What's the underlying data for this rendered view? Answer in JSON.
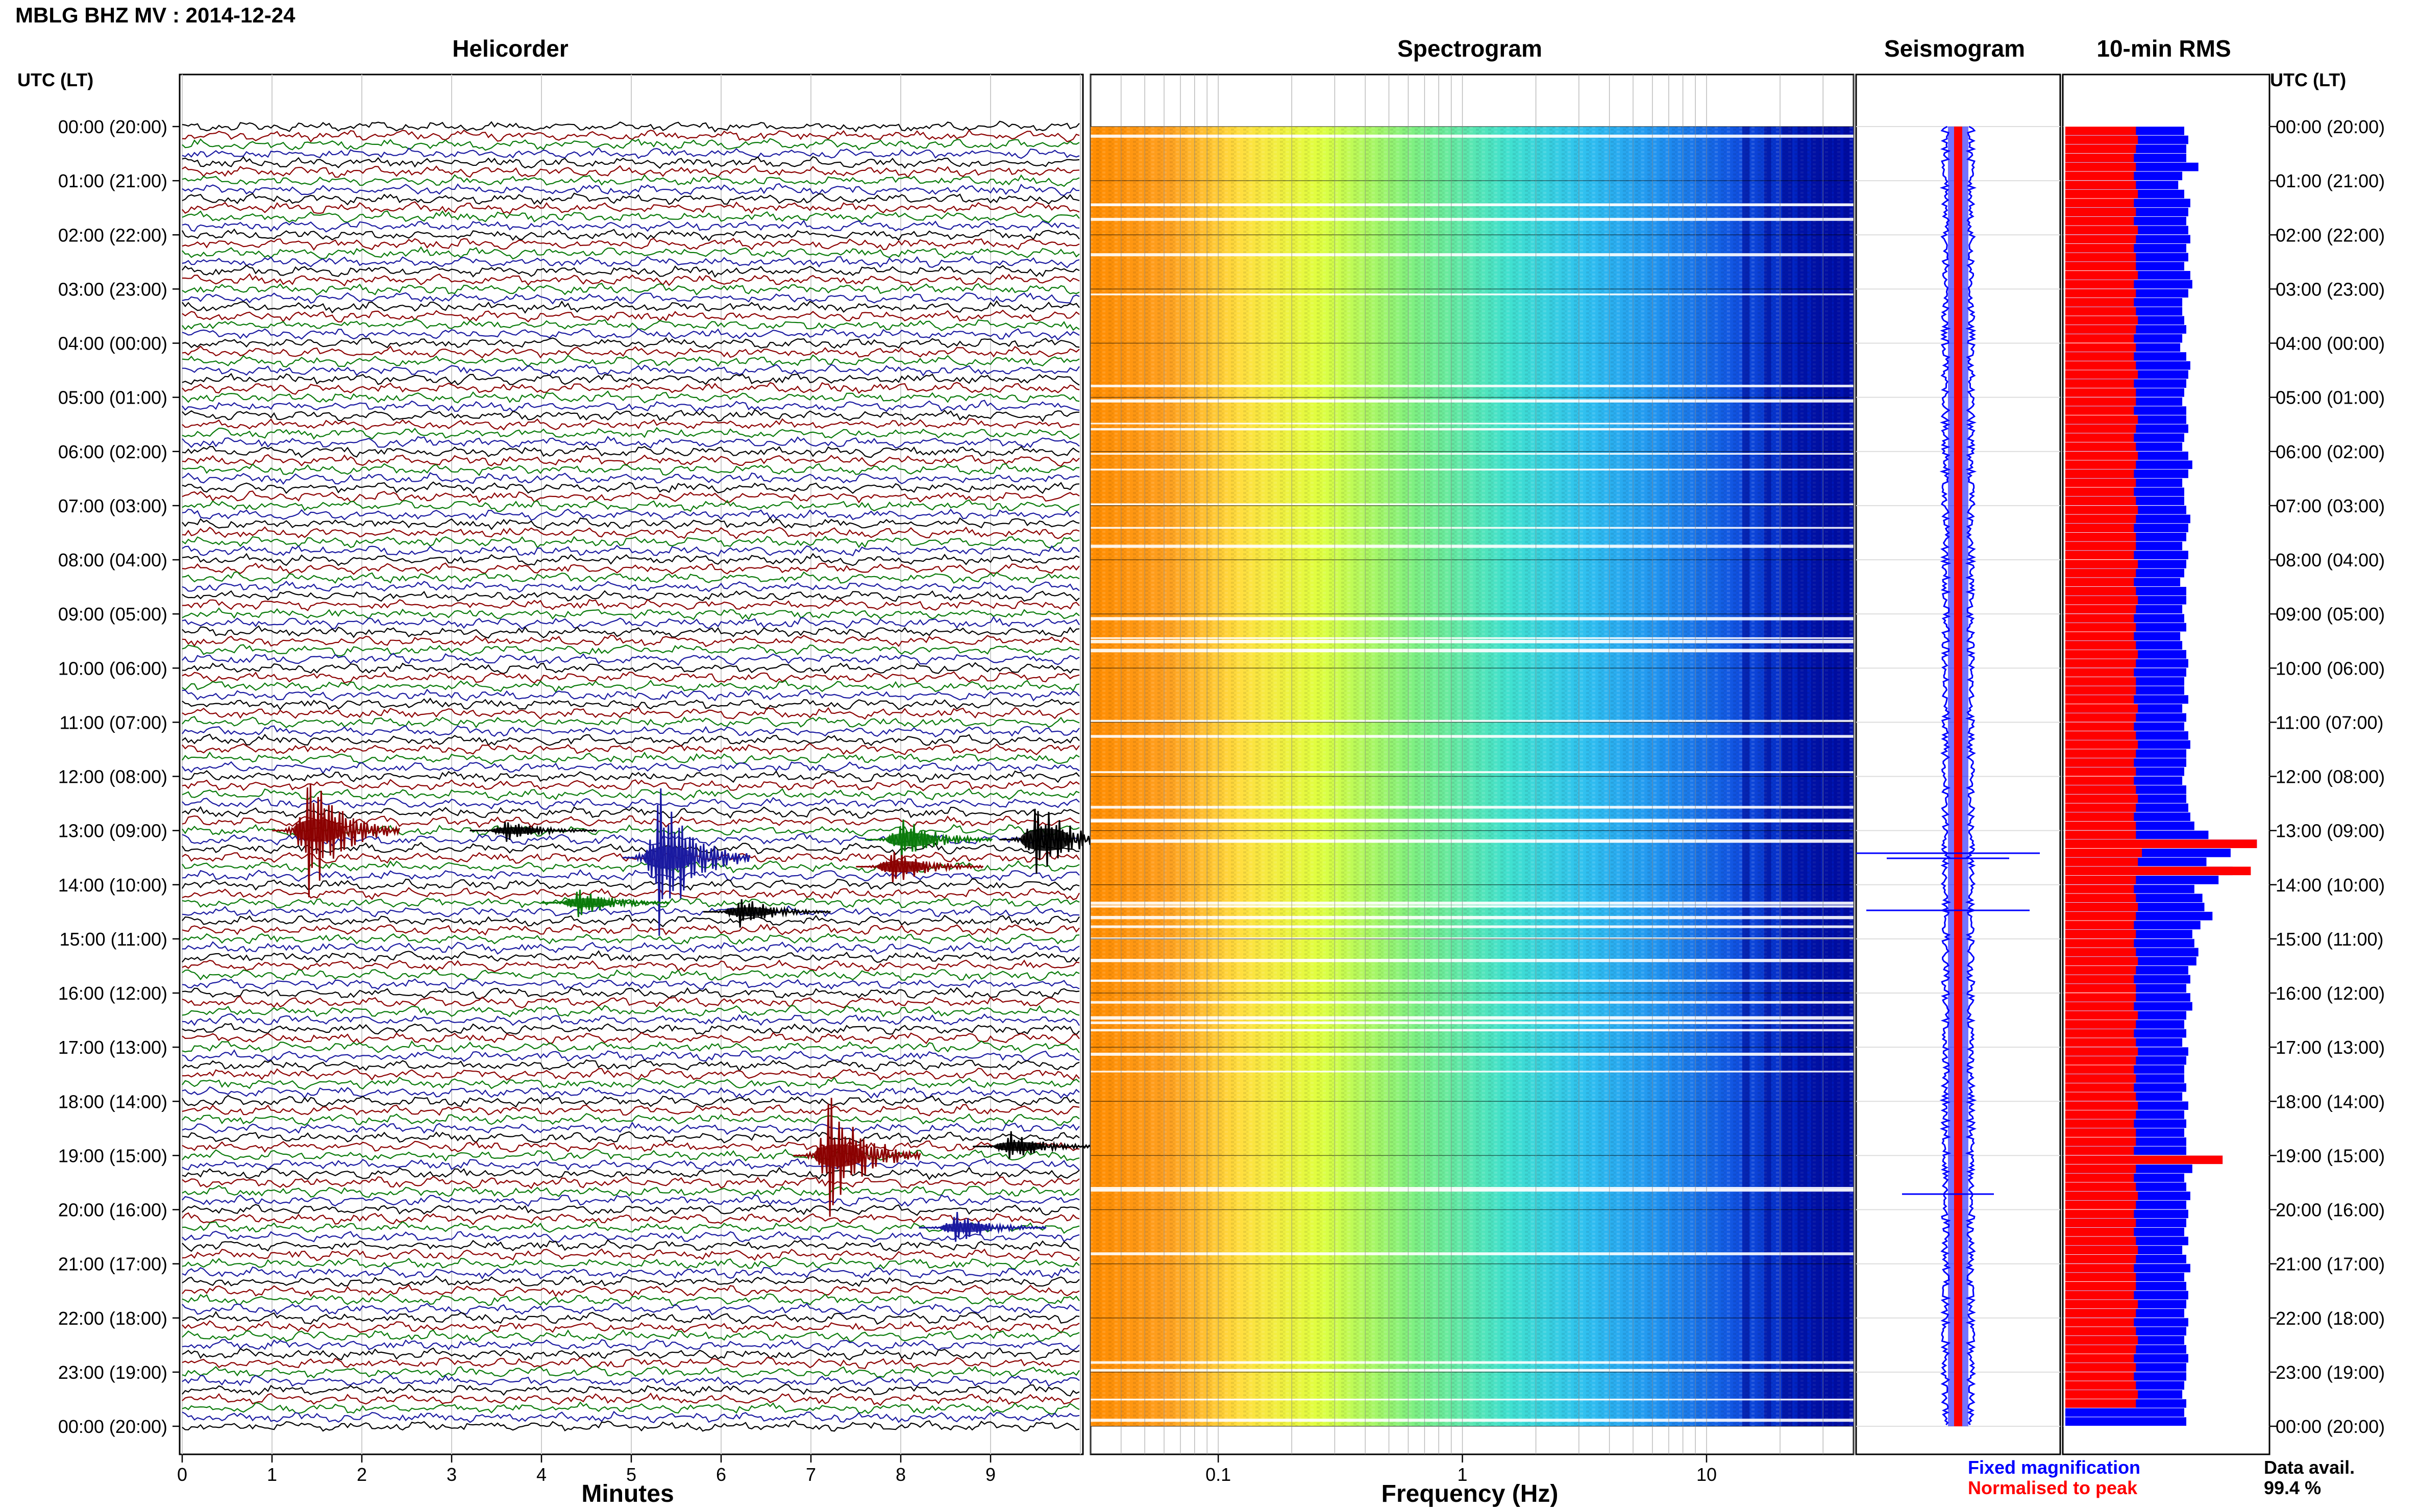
{
  "header": {
    "title": "MBLG BHZ MV : 2014-12-24"
  },
  "panels": {
    "helicorder": "Helicorder",
    "spectrogram": "Spectrogram",
    "seismogram": "Seismogram",
    "rms": "10-min RMS"
  },
  "axis": {
    "time_left_header": "UTC (LT)",
    "time_right_header": "UTC (LT)",
    "minutes_label": "Minutes",
    "frequency_label": "Frequency (Hz)"
  },
  "time_ticks": [
    "00:00 (20:00)",
    "01:00 (21:00)",
    "02:00 (22:00)",
    "03:00 (23:00)",
    "04:00 (00:00)",
    "05:00 (01:00)",
    "06:00 (02:00)",
    "07:00 (03:00)",
    "08:00 (04:00)",
    "09:00 (05:00)",
    "10:00 (06:00)",
    "11:00 (07:00)",
    "12:00 (08:00)",
    "13:00 (09:00)",
    "14:00 (10:00)",
    "15:00 (11:00)",
    "16:00 (12:00)",
    "17:00 (13:00)",
    "18:00 (14:00)",
    "19:00 (15:00)",
    "20:00 (16:00)",
    "21:00 (17:00)",
    "22:00 (18:00)",
    "23:00 (19:00)",
    "00:00 (20:00)"
  ],
  "minute_ticks": [
    "0",
    "1",
    "2",
    "3",
    "4",
    "5",
    "6",
    "7",
    "8",
    "9"
  ],
  "frequency_ticks": [
    "0.1",
    "1",
    "10"
  ],
  "legend": {
    "fixed": "Fixed magnification",
    "normalised": "Normalised to peak",
    "fixed_color": "#0000ff",
    "normalised_color": "#ff0000"
  },
  "data_availability": {
    "label": "Data avail.",
    "value": "99.4 %"
  },
  "colors": {
    "trace_cycle": [
      "#000000",
      "#8b0000",
      "#0a7a0a",
      "#1a1aa0"
    ],
    "rms_fixed": "#0000ff",
    "rms_normalised": "#ff0000",
    "seismo_envelope": "#0000ff",
    "seismo_peak": "#ff0000"
  },
  "chart_data": {
    "type": "heatmap",
    "x_minutes_range": [
      0,
      10
    ],
    "frequency_range_hz": [
      0.03,
      40
    ],
    "frequency_scale": "log",
    "traces_per_hour": 6,
    "hours": 24,
    "events": [
      {
        "row": 78,
        "minute": 1.4,
        "amp": 9,
        "color": "#8b0000"
      },
      {
        "row": 81,
        "minute": 5.3,
        "amp": 10,
        "color": "#1a1aa0"
      },
      {
        "row": 79,
        "minute": 9.5,
        "amp": 5,
        "color": "#000000"
      },
      {
        "row": 79,
        "minute": 8.0,
        "amp": 3,
        "color": "#0a7a0a"
      },
      {
        "row": 82,
        "minute": 7.9,
        "amp": 2.5,
        "color": "#8b0000"
      },
      {
        "row": 114,
        "minute": 7.2,
        "amp": 8,
        "color": "#8b0000"
      },
      {
        "row": 113,
        "minute": 9.2,
        "amp": 2,
        "color": "#000000"
      },
      {
        "row": 122,
        "minute": 8.6,
        "amp": 2,
        "color": "#1a1aa0"
      },
      {
        "row": 87,
        "minute": 6.2,
        "amp": 2,
        "color": "#000000"
      },
      {
        "row": 86,
        "minute": 4.4,
        "amp": 2,
        "color": "#0a7a0a"
      },
      {
        "row": 78,
        "minute": 3.6,
        "amp": 1.5,
        "color": "#000000"
      }
    ],
    "rms_fixed": [
      0.59,
      0.61,
      0.6,
      0.6,
      0.66,
      0.58,
      0.56,
      0.59,
      0.62,
      0.61,
      0.6,
      0.61,
      0.62,
      0.6,
      0.61,
      0.59,
      0.62,
      0.63,
      0.61,
      0.58,
      0.58,
      0.59,
      0.6,
      0.58,
      0.57,
      0.6,
      0.62,
      0.61,
      0.6,
      0.59,
      0.58,
      0.6,
      0.6,
      0.61,
      0.59,
      0.58,
      0.61,
      0.63,
      0.61,
      0.58,
      0.59,
      0.59,
      0.6,
      0.62,
      0.61,
      0.6,
      0.58,
      0.61,
      0.6,
      0.59,
      0.57,
      0.6,
      0.6,
      0.58,
      0.59,
      0.6,
      0.57,
      0.58,
      0.6,
      0.61,
      0.6,
      0.59,
      0.59,
      0.61,
      0.58,
      0.6,
      0.59,
      0.61,
      0.62,
      0.6,
      0.6,
      0.59,
      0.58,
      0.6,
      0.6,
      0.61,
      0.62,
      0.64,
      0.71,
      0.95,
      0.82,
      0.7,
      0.83,
      0.76,
      0.64,
      0.68,
      0.69,
      0.73,
      0.67,
      0.63,
      0.64,
      0.66,
      0.65,
      0.61,
      0.62,
      0.6,
      0.62,
      0.63,
      0.6,
      0.59,
      0.6,
      0.58,
      0.61,
      0.6,
      0.59,
      0.59,
      0.6,
      0.58,
      0.61,
      0.59,
      0.6,
      0.59,
      0.6,
      0.6,
      0.78,
      0.63,
      0.59,
      0.6,
      0.62,
      0.6,
      0.61,
      0.6,
      0.59,
      0.61,
      0.58,
      0.6,
      0.62,
      0.59,
      0.6,
      0.61,
      0.6,
      0.59,
      0.61,
      0.6,
      0.59,
      0.6,
      0.61,
      0.6,
      0.6,
      0.59,
      0.58,
      0.6,
      0.59,
      0.6
    ],
    "rms_normalised": [
      0.35,
      0.36,
      0.35,
      0.34,
      0.35,
      0.34,
      0.35,
      0.36,
      0.34,
      0.35,
      0.34,
      0.36,
      0.35,
      0.34,
      0.35,
      0.35,
      0.36,
      0.34,
      0.35,
      0.34,
      0.35,
      0.36,
      0.35,
      0.34,
      0.35,
      0.34,
      0.35,
      0.36,
      0.34,
      0.35,
      0.35,
      0.34,
      0.36,
      0.35,
      0.34,
      0.35,
      0.36,
      0.35,
      0.34,
      0.35,
      0.34,
      0.35,
      0.36,
      0.35,
      0.34,
      0.35,
      0.35,
      0.34,
      0.36,
      0.35,
      0.34,
      0.35,
      0.36,
      0.35,
      0.34,
      0.35,
      0.34,
      0.35,
      0.36,
      0.35,
      0.34,
      0.35,
      0.35,
      0.34,
      0.36,
      0.35,
      0.34,
      0.35,
      0.36,
      0.35,
      0.34,
      0.35,
      0.34,
      0.35,
      0.36,
      0.35,
      0.34,
      0.35,
      0.35,
      0.95,
      0.38,
      0.36,
      0.92,
      0.35,
      0.34,
      0.35,
      0.36,
      0.35,
      0.34,
      0.35,
      0.34,
      0.35,
      0.36,
      0.35,
      0.34,
      0.35,
      0.35,
      0.34,
      0.36,
      0.35,
      0.34,
      0.35,
      0.36,
      0.35,
      0.34,
      0.35,
      0.34,
      0.35,
      0.36,
      0.35,
      0.34,
      0.35,
      0.35,
      0.34,
      0.78,
      0.35,
      0.34,
      0.35,
      0.36,
      0.35,
      0.34,
      0.35,
      0.34,
      0.35,
      0.36,
      0.35,
      0.34,
      0.35,
      0.35,
      0.34,
      0.36,
      0.35,
      0.34,
      0.35,
      0.36,
      0.35,
      0.34,
      0.35,
      0.34,
      0.35,
      0.36,
      0.35
    ]
  }
}
